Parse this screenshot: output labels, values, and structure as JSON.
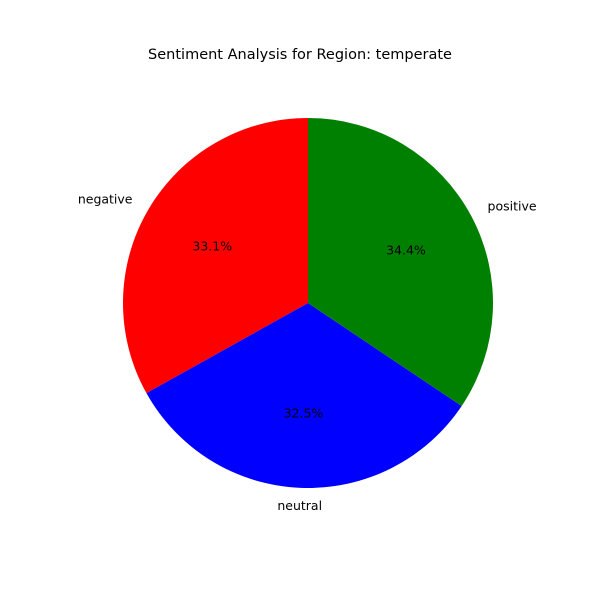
{
  "chart_data": {
    "type": "pie",
    "title": "Sentiment Analysis for Region: temperate",
    "slices": [
      {
        "label": "negative",
        "value": 33.1,
        "pct_label": "33.1%",
        "color": "#ff0000"
      },
      {
        "label": "neutral",
        "value": 32.5,
        "pct_label": "32.5%",
        "color": "#0000ff"
      },
      {
        "label": "positive",
        "value": 34.4,
        "pct_label": "34.4%",
        "color": "#008000"
      }
    ],
    "start_angle_deg": 90,
    "direction": "counterclockwise",
    "legend": "none"
  }
}
